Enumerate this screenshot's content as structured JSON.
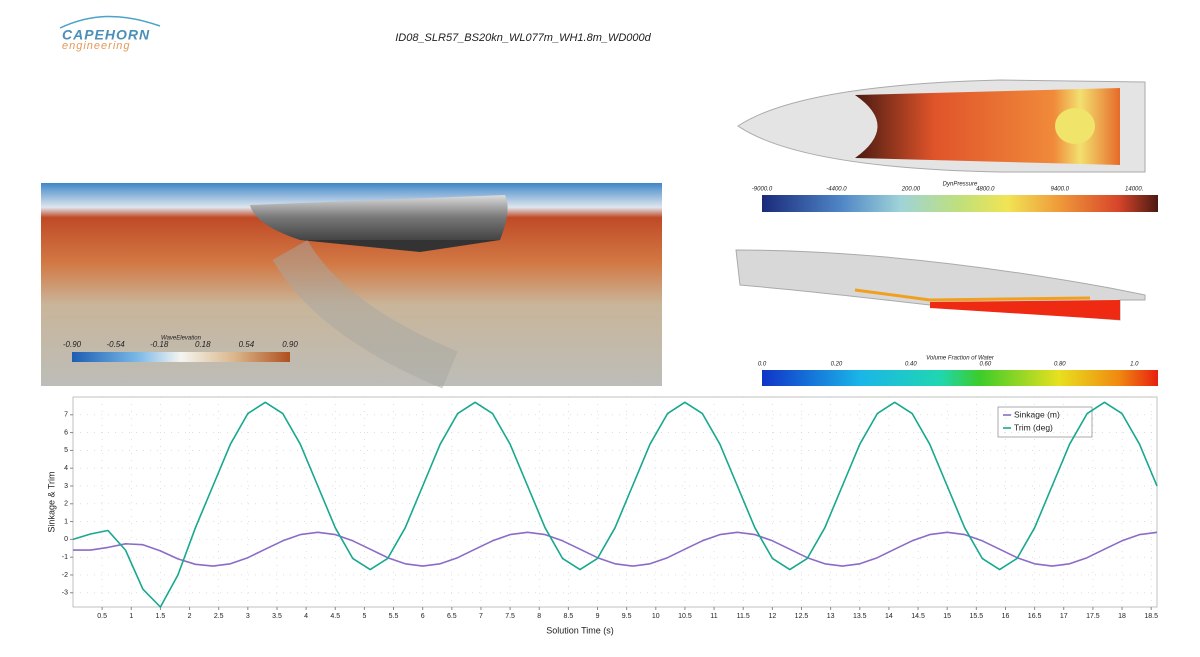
{
  "header": {
    "logo": "CAPEHORN",
    "logo_sub": "engineering",
    "title": "ID08_SLR57_BS20kn_WL077m_WH1.8m_WD000d"
  },
  "visuals": {
    "wave": {
      "title": "WaveElevation",
      "labels": [
        "-0.90",
        "-0.54",
        "-0.18",
        "0.18",
        "0.54",
        "0.90"
      ]
    },
    "pressure": {
      "title": "DynPressure",
      "labels": [
        "-9000.0",
        "-4400.0",
        "200.00",
        "4800.0",
        "9400.0",
        "14000."
      ]
    },
    "fraction": {
      "title": "Volume Fraction of Water",
      "labels": [
        "0.0",
        "0.20",
        "0.40",
        "0.60",
        "0.80",
        "1.0"
      ]
    }
  },
  "chart_data": {
    "type": "line",
    "x_label": "Solution Time (s)",
    "y_label": "Sinkage & Trim",
    "grid": true,
    "legend": "top-right",
    "x": [
      0,
      0.3,
      0.6,
      0.9,
      1.2,
      1.5,
      1.8,
      2.1,
      2.4,
      2.7,
      3.0,
      3.3,
      3.6,
      3.9,
      4.2,
      4.5,
      4.8,
      5.1,
      5.4,
      5.7,
      6.0,
      6.3,
      6.6,
      6.9,
      7.2,
      7.5,
      7.8,
      8.1,
      8.4,
      8.7,
      9.0,
      9.3,
      9.6,
      9.9,
      10.2,
      10.5,
      10.8,
      11.1,
      11.4,
      11.7,
      12.0,
      12.3,
      12.6,
      12.9,
      13.2,
      13.5,
      13.8,
      14.1,
      14.4,
      14.7,
      15.0,
      15.3,
      15.6,
      15.9,
      16.2,
      16.5,
      16.8,
      17.1,
      17.4,
      17.7,
      18.0,
      18.3,
      18.6
    ],
    "series": [
      {
        "name": "Sinkage (m)",
        "color": "#8a6cc8",
        "values": [
          -0.6,
          -0.6,
          -0.45,
          -0.25,
          -0.3,
          -0.65,
          -1.1,
          -1.4,
          -1.5,
          -1.37,
          -1.03,
          -0.55,
          -0.08,
          0.27,
          0.4,
          0.27,
          -0.08,
          -0.55,
          -1.03,
          -1.37,
          -1.5,
          -1.37,
          -1.03,
          -0.55,
          -0.08,
          0.27,
          0.4,
          0.27,
          -0.08,
          -0.55,
          -1.03,
          -1.37,
          -1.5,
          -1.37,
          -1.03,
          -0.55,
          -0.08,
          0.27,
          0.4,
          0.27,
          -0.08,
          -0.55,
          -1.03,
          -1.37,
          -1.5,
          -1.37,
          -1.03,
          -0.55,
          -0.08,
          0.27,
          0.4,
          0.27,
          -0.08,
          -0.55,
          -1.03,
          -1.37,
          -1.5,
          -1.37,
          -1.03,
          -0.55,
          -0.08,
          0.27,
          0.4
        ]
      },
      {
        "name": "Trim (deg)",
        "color": "#17a88e",
        "values": [
          0,
          0.3,
          0.5,
          -0.6,
          -2.8,
          -3.8,
          -2.0,
          0.65,
          3,
          5.35,
          7.07,
          7.7,
          7.07,
          5.35,
          3,
          0.65,
          -1.07,
          -1.7,
          -1.07,
          0.65,
          3,
          5.35,
          7.07,
          7.7,
          7.07,
          5.35,
          3,
          0.65,
          -1.07,
          -1.7,
          -1.07,
          0.65,
          3,
          5.35,
          7.07,
          7.7,
          7.07,
          5.35,
          3,
          0.65,
          -1.07,
          -1.7,
          -1.07,
          0.65,
          3,
          5.35,
          7.07,
          7.7,
          7.07,
          5.35,
          3,
          0.65,
          -1.07,
          -1.7,
          -1.07,
          0.65,
          3,
          5.35,
          7.07,
          7.7,
          7.07,
          5.35,
          3
        ]
      }
    ],
    "xlim": [
      0,
      18.6
    ],
    "xticks": [
      0.5,
      1,
      1.5,
      2,
      2.5,
      3,
      3.5,
      4,
      4.5,
      5,
      5.5,
      6,
      6.5,
      7,
      7.5,
      8,
      8.5,
      9,
      9.5,
      10,
      10.5,
      11,
      11.5,
      12,
      12.5,
      13,
      13.5,
      14,
      14.5,
      15,
      15.5,
      16,
      16.5,
      17,
      17.5,
      18,
      18.5
    ],
    "ylim": [
      -3.8,
      8
    ],
    "yticks": [
      -3,
      -2,
      -1,
      0,
      1,
      2,
      3,
      4,
      5,
      6,
      7
    ]
  }
}
